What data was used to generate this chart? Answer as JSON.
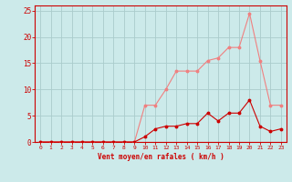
{
  "x": [
    0,
    1,
    2,
    3,
    4,
    5,
    6,
    7,
    8,
    9,
    10,
    11,
    12,
    13,
    14,
    15,
    16,
    17,
    18,
    19,
    20,
    21,
    22,
    23
  ],
  "rafales": [
    0.0,
    0.0,
    0.0,
    0.0,
    0.0,
    0.0,
    0.0,
    0.0,
    0.0,
    0.0,
    7.0,
    7.0,
    10.0,
    13.5,
    13.5,
    13.5,
    15.5,
    16.0,
    18.0,
    18.0,
    24.5,
    15.5,
    7.0,
    7.0
  ],
  "moyen": [
    0.0,
    0.0,
    0.0,
    0.0,
    0.0,
    0.0,
    0.0,
    0.0,
    0.0,
    0.0,
    1.0,
    2.5,
    3.0,
    3.0,
    3.5,
    3.5,
    5.5,
    4.0,
    5.5,
    5.5,
    8.0,
    3.0,
    2.0,
    2.5
  ],
  "color_rafales": "#f08080",
  "color_moyen": "#cc0000",
  "bg_color": "#cceaea",
  "grid_color": "#aacccc",
  "xlabel": "Vent moyen/en rafales ( km/h )",
  "ylabel_ticks": [
    0,
    5,
    10,
    15,
    20,
    25
  ],
  "xlim": [
    -0.5,
    23.5
  ],
  "ylim": [
    0,
    26
  ],
  "marker": "o",
  "markersize": 1.8,
  "linewidth": 0.8
}
